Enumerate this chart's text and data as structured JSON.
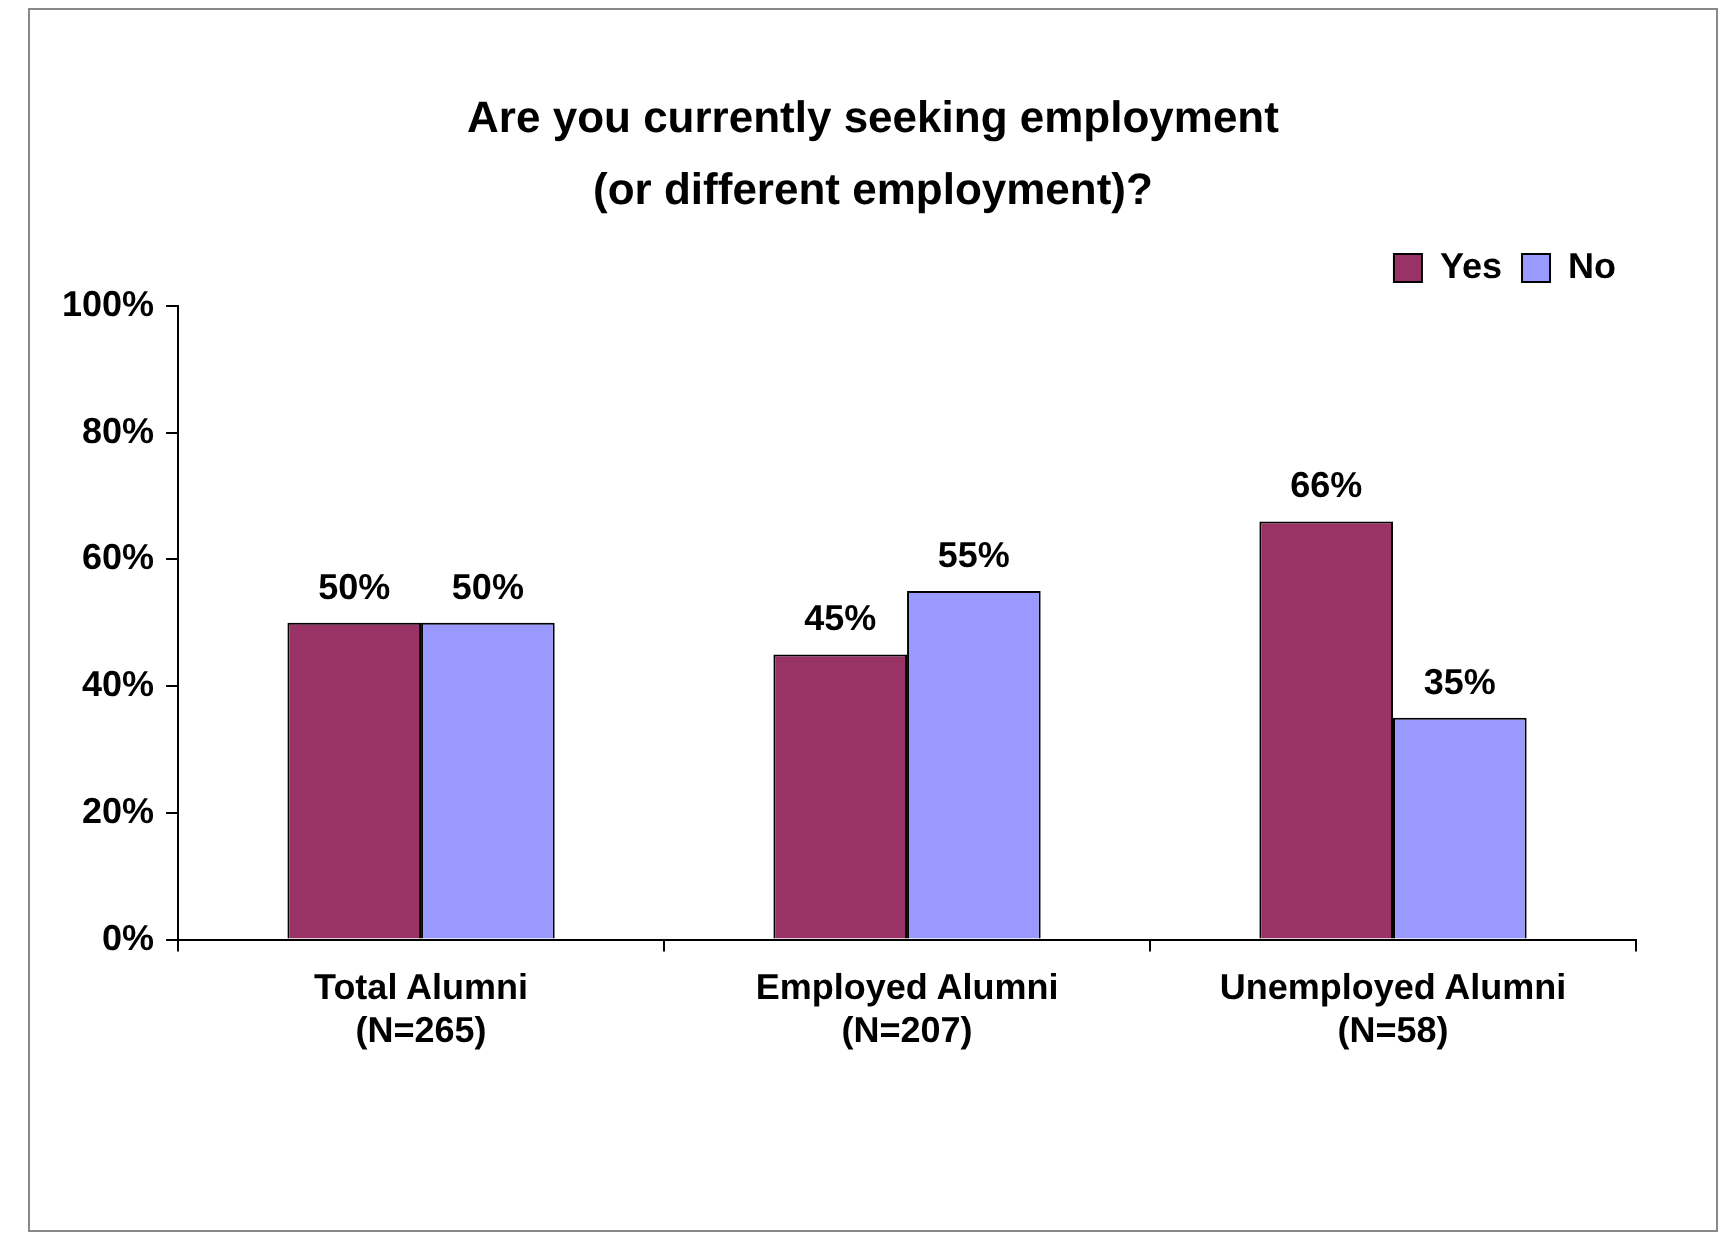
{
  "chart_data": {
    "type": "bar",
    "title": "Are you currently seeking employment\n(or different employment)?",
    "categories": [
      "Total Alumni\n(N=265)",
      "Employed Alumni\n(N=207)",
      "Unemployed Alumni\n(N=58)"
    ],
    "series": [
      {
        "name": "Yes",
        "color": "#993366",
        "values": [
          50,
          45,
          66
        ],
        "value_labels": [
          "50%",
          "45%",
          "66%"
        ]
      },
      {
        "name": "No",
        "color": "#9999ff",
        "values": [
          50,
          55,
          35
        ],
        "value_labels": [
          "50%",
          "55%",
          "35%"
        ]
      }
    ],
    "ylim": [
      0,
      100
    ],
    "yticks": [
      {
        "value": 0,
        "label": "0%"
      },
      {
        "value": 20,
        "label": "20%"
      },
      {
        "value": 40,
        "label": "40%"
      },
      {
        "value": 60,
        "label": "60%"
      },
      {
        "value": 80,
        "label": "80%"
      },
      {
        "value": 100,
        "label": "100%"
      }
    ],
    "grid": false,
    "legend": "top right"
  }
}
